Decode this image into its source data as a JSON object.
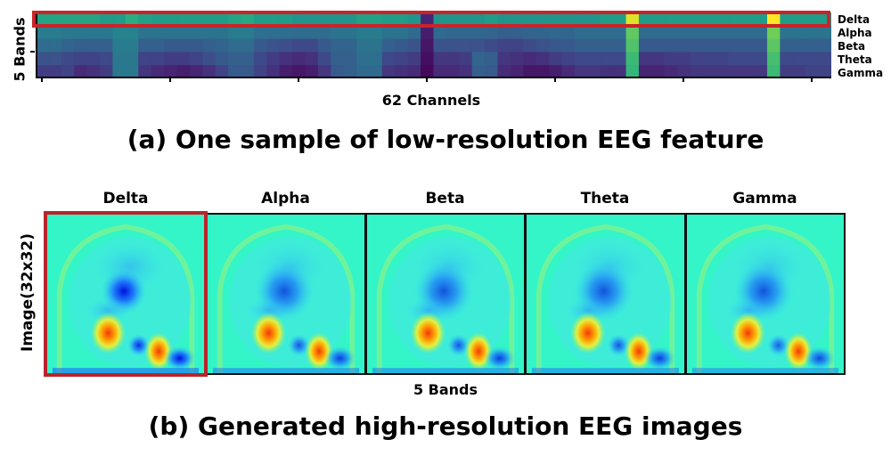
{
  "chart_data": [
    {
      "type": "heatmap",
      "title": "(a) One sample of low-resolution EEG feature",
      "xlabel": "62 Channels",
      "ylabel": "5 Bands",
      "row_labels": [
        "Delta",
        "Alpha",
        "Beta",
        "Theta",
        "Gamma"
      ],
      "highlighted_row": "Delta",
      "colormap": "viridis",
      "value_range": [
        0,
        1
      ],
      "values": [
        [
          0.58,
          0.58,
          0.58,
          0.58,
          0.58,
          0.55,
          0.55,
          0.62,
          0.57,
          0.55,
          0.55,
          0.55,
          0.55,
          0.55,
          0.55,
          0.58,
          0.6,
          0.55,
          0.55,
          0.55,
          0.52,
          0.52,
          0.52,
          0.52,
          0.52,
          0.57,
          0.57,
          0.55,
          0.55,
          0.52,
          0.1,
          0.52,
          0.52,
          0.52,
          0.52,
          0.55,
          0.52,
          0.52,
          0.52,
          0.52,
          0.52,
          0.52,
          0.52,
          0.52,
          0.55,
          0.55,
          0.95,
          0.55,
          0.55,
          0.55,
          0.55,
          0.55,
          0.55,
          0.55,
          0.55,
          0.55,
          0.55,
          1.0,
          0.55,
          0.55,
          0.55,
          0.55
        ],
        [
          0.42,
          0.42,
          0.4,
          0.4,
          0.4,
          0.4,
          0.45,
          0.45,
          0.38,
          0.38,
          0.38,
          0.38,
          0.38,
          0.38,
          0.38,
          0.42,
          0.42,
          0.36,
          0.36,
          0.36,
          0.35,
          0.35,
          0.35,
          0.38,
          0.38,
          0.42,
          0.42,
          0.38,
          0.38,
          0.34,
          0.08,
          0.34,
          0.33,
          0.33,
          0.33,
          0.32,
          0.3,
          0.3,
          0.32,
          0.32,
          0.33,
          0.33,
          0.35,
          0.35,
          0.35,
          0.35,
          0.75,
          0.35,
          0.35,
          0.35,
          0.35,
          0.35,
          0.35,
          0.35,
          0.35,
          0.35,
          0.35,
          0.78,
          0.38,
          0.38,
          0.38,
          0.38
        ],
        [
          0.35,
          0.35,
          0.32,
          0.3,
          0.3,
          0.3,
          0.42,
          0.42,
          0.3,
          0.3,
          0.28,
          0.28,
          0.28,
          0.3,
          0.32,
          0.35,
          0.35,
          0.28,
          0.26,
          0.24,
          0.22,
          0.22,
          0.28,
          0.32,
          0.32,
          0.38,
          0.38,
          0.3,
          0.28,
          0.26,
          0.06,
          0.26,
          0.25,
          0.25,
          0.25,
          0.23,
          0.2,
          0.2,
          0.23,
          0.25,
          0.27,
          0.28,
          0.3,
          0.3,
          0.3,
          0.3,
          0.72,
          0.28,
          0.28,
          0.28,
          0.28,
          0.28,
          0.28,
          0.28,
          0.28,
          0.28,
          0.28,
          0.74,
          0.3,
          0.3,
          0.3,
          0.3
        ],
        [
          0.25,
          0.25,
          0.22,
          0.2,
          0.2,
          0.22,
          0.4,
          0.4,
          0.2,
          0.2,
          0.18,
          0.18,
          0.2,
          0.24,
          0.28,
          0.3,
          0.3,
          0.22,
          0.18,
          0.14,
          0.12,
          0.14,
          0.22,
          0.3,
          0.3,
          0.36,
          0.36,
          0.22,
          0.2,
          0.18,
          0.04,
          0.16,
          0.16,
          0.18,
          0.32,
          0.3,
          0.16,
          0.14,
          0.12,
          0.14,
          0.18,
          0.2,
          0.22,
          0.22,
          0.22,
          0.22,
          0.68,
          0.16,
          0.16,
          0.18,
          0.18,
          0.2,
          0.2,
          0.2,
          0.22,
          0.22,
          0.22,
          0.7,
          0.22,
          0.22,
          0.22,
          0.22
        ],
        [
          0.18,
          0.18,
          0.2,
          0.12,
          0.14,
          0.18,
          0.4,
          0.4,
          0.16,
          0.12,
          0.1,
          0.08,
          0.1,
          0.14,
          0.2,
          0.28,
          0.28,
          0.2,
          0.14,
          0.08,
          0.06,
          0.08,
          0.16,
          0.28,
          0.3,
          0.34,
          0.34,
          0.16,
          0.14,
          0.12,
          0.02,
          0.12,
          0.12,
          0.14,
          0.3,
          0.28,
          0.12,
          0.1,
          0.06,
          0.06,
          0.08,
          0.12,
          0.16,
          0.16,
          0.14,
          0.14,
          0.66,
          0.1,
          0.1,
          0.12,
          0.14,
          0.16,
          0.16,
          0.16,
          0.16,
          0.16,
          0.16,
          0.68,
          0.18,
          0.18,
          0.2,
          0.2
        ]
      ]
    },
    {
      "type": "heatmap",
      "title": "(b) Generated high-resolution EEG images",
      "xlabel": "5 Bands",
      "ylabel": "Image(32x32)",
      "panels": [
        "Delta",
        "Alpha",
        "Beta",
        "Theta",
        "Gamma"
      ],
      "highlighted_panel": "Delta",
      "colormap": "jet"
    }
  ],
  "fig_a": {
    "ylabel": "5 Bands",
    "xlabel": "62 Channels",
    "bands": [
      "Delta",
      "Alpha",
      "Beta",
      "Theta",
      "Gamma"
    ],
    "caption": "(a) One sample of low-resolution EEG feature"
  },
  "fig_b": {
    "panels": [
      "Delta",
      "Alpha",
      "Beta",
      "Theta",
      "Gamma"
    ],
    "ylabel": "Image(32x32)",
    "xlabel": "5 Bands",
    "caption": "(b) Generated high-resolution EEG images"
  },
  "colors": {
    "highlight": "#c8242a",
    "background_jet": "#33f5c8"
  }
}
